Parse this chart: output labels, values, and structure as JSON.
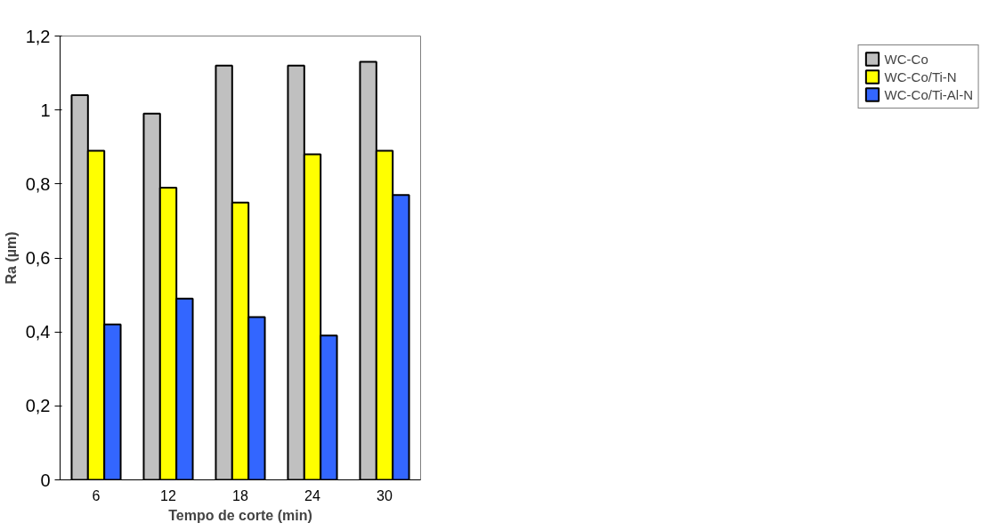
{
  "chart_data": {
    "type": "bar",
    "xlabel": "Tempo de corte (min)",
    "ylabel": "Ra (µm)",
    "categories": [
      "6",
      "12",
      "18",
      "24",
      "30"
    ],
    "series": [
      {
        "name": "WC-Co",
        "color": "#c0c0c0",
        "values": [
          1.04,
          0.99,
          1.12,
          1.12,
          1.13
        ]
      },
      {
        "name": "WC-Co/Ti-N",
        "color": "#ffff00",
        "values": [
          0.89,
          0.79,
          0.75,
          0.88,
          0.89
        ]
      },
      {
        "name": "WC-Co/Ti-Al-N",
        "color": "#3366ff",
        "values": [
          0.42,
          0.49,
          0.44,
          0.39,
          0.77
        ]
      }
    ],
    "ylim": [
      0,
      1.2
    ],
    "yticks": [
      0,
      {
        "value": 0.2,
        "label": "0,2"
      },
      {
        "value": 0.4,
        "label": "0,4"
      },
      {
        "value": 0.6,
        "label": "0,6"
      },
      {
        "value": 0.8,
        "label": "0,8"
      },
      1,
      {
        "value": 1.2,
        "label": "1,2"
      }
    ],
    "grid": false,
    "legend": "right"
  }
}
